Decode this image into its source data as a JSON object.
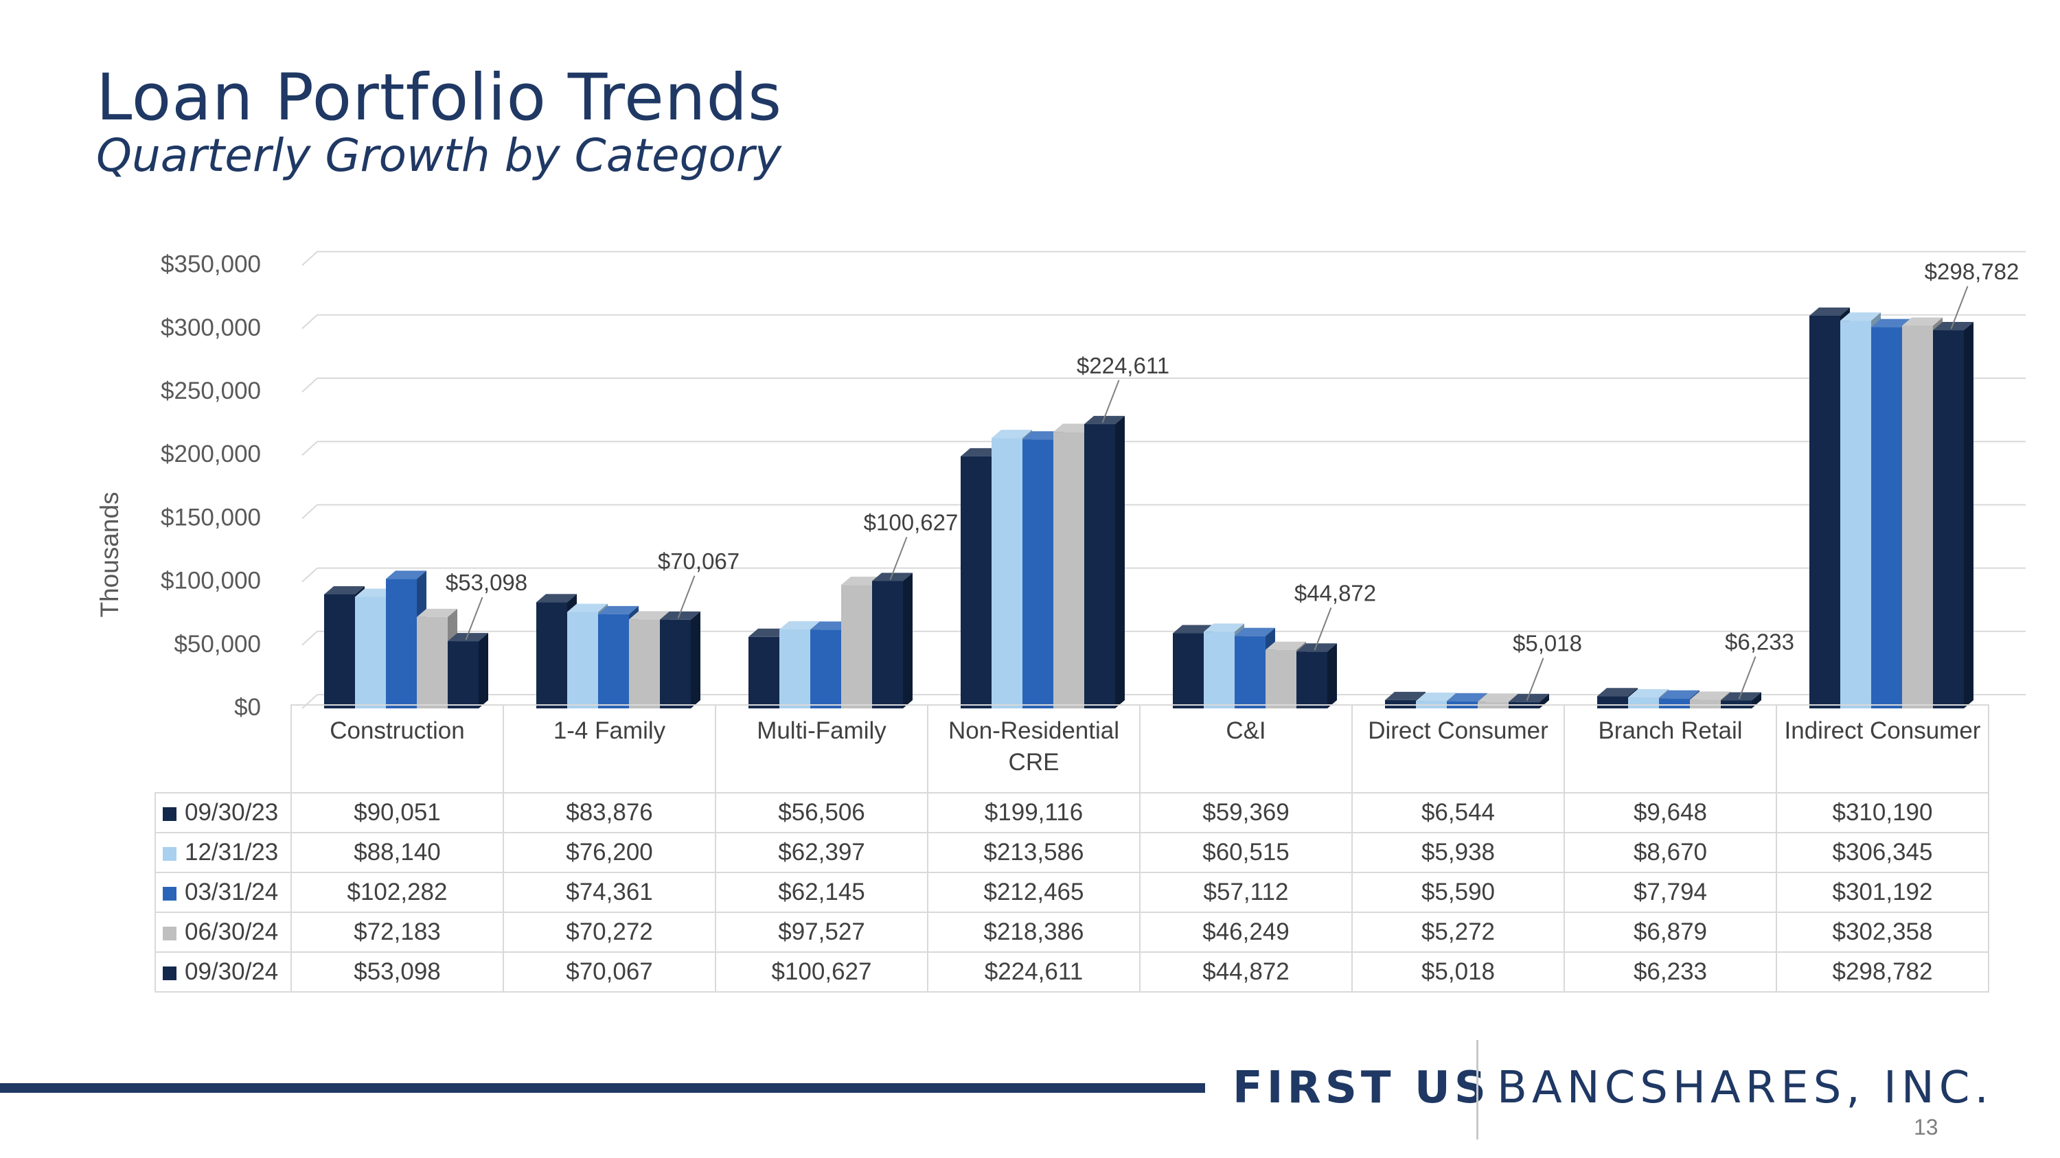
{
  "slide": {
    "title": "Loan Portfolio Trends",
    "subtitle": "Quarterly Growth by Category",
    "page_number": "13"
  },
  "brand": {
    "first": "FIRST US",
    "rest": "BANCSHARES, INC."
  },
  "colors": {
    "title": "#1f3864",
    "footer_line": "#1f3864",
    "gridline": "#d9d9d9"
  },
  "chart_data": {
    "type": "bar",
    "style": "3d-clustered-column-with-data-table",
    "ylabel": "Thousands",
    "xlabel": "",
    "ylim": [
      0,
      350000
    ],
    "yticks": [
      0,
      50000,
      100000,
      150000,
      200000,
      250000,
      300000,
      350000
    ],
    "ytick_labels": [
      "$0",
      "$50,000",
      "$100,000",
      "$150,000",
      "$200,000",
      "$250,000",
      "$300,000",
      "$350,000"
    ],
    "grid": true,
    "categories": [
      "Construction",
      "1-4 Family",
      "Multi-Family",
      "Non-Residential CRE",
      "C&I",
      "Direct Consumer",
      "Branch Retail",
      "Indirect Consumer"
    ],
    "series": [
      {
        "name": "09/30/23",
        "color": "#13284b",
        "values": [
          90051,
          83876,
          56506,
          199116,
          59369,
          6544,
          9648,
          310190
        ],
        "display": [
          "$90,051",
          "$83,876",
          "$56,506",
          "$199,116",
          "$59,369",
          "$6,544",
          "$9,648",
          "$310,190"
        ]
      },
      {
        "name": "12/31/23",
        "color": "#a9d0ee",
        "values": [
          88140,
          76200,
          62397,
          213586,
          60515,
          5938,
          8670,
          306345
        ],
        "display": [
          "$88,140",
          "$76,200",
          "$62,397",
          "$213,586",
          "$60,515",
          "$5,938",
          "$8,670",
          "$306,345"
        ]
      },
      {
        "name": "03/31/24",
        "color": "#2a64b8",
        "values": [
          102282,
          74361,
          62145,
          212465,
          57112,
          5590,
          7794,
          301192
        ],
        "display": [
          "$102,282",
          "$74,361",
          "$62,145",
          "$212,465",
          "$57,112",
          "$5,590",
          "$7,794",
          "$301,192"
        ]
      },
      {
        "name": "06/30/24",
        "color": "#bfbfbf",
        "values": [
          72183,
          70272,
          97527,
          218386,
          46249,
          5272,
          6879,
          302358
        ],
        "display": [
          "$72,183",
          "$70,272",
          "$97,527",
          "$218,386",
          "$46,249",
          "$5,272",
          "$6,879",
          "$302,358"
        ]
      },
      {
        "name": "09/30/24",
        "color": "#13284b",
        "values": [
          53098,
          70067,
          100627,
          224611,
          44872,
          5018,
          6233,
          298782
        ],
        "display": [
          "$53,098",
          "$70,067",
          "$100,627",
          "$224,611",
          "$44,872",
          "$5,018",
          "$6,233",
          "$298,782"
        ]
      }
    ],
    "data_labels": {
      "series": "09/30/24",
      "labels": [
        "$53,098",
        "$70,067",
        "$100,627",
        "$224,611",
        "$44,872",
        "$5,018",
        "$6,233",
        "$298,782"
      ]
    }
  }
}
